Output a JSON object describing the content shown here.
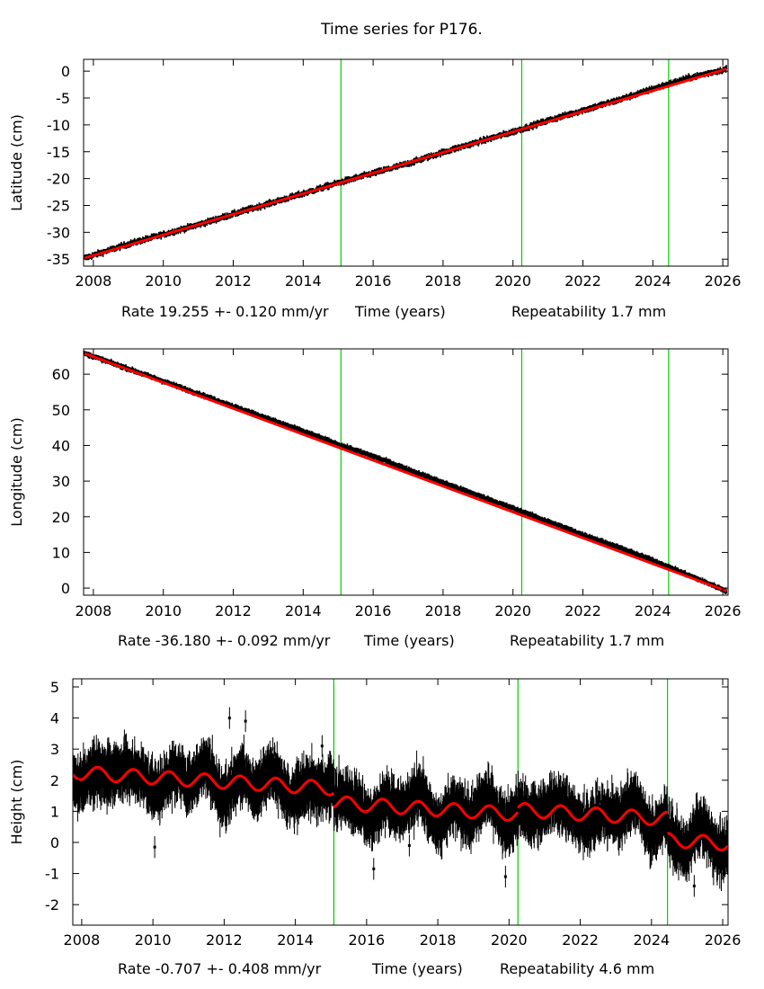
{
  "title": "Time series for P176.",
  "colors": {
    "data": "#000000",
    "model": "#ff0000",
    "event_line": "#00cc00",
    "axis": "#000000"
  },
  "chart_data": [
    {
      "type": "scatter",
      "panel": "latitude",
      "ylabel": "Latitude (cm)",
      "xlabel_parts": [
        "Rate 19.255 +- 0.120 mm/yr",
        "Time (years)",
        "Repeatability 1.7 mm"
      ],
      "xlim": [
        2007.72,
        2026.15
      ],
      "ylim": [
        -36.3,
        2.2
      ],
      "xticks": [
        2008,
        2010,
        2012,
        2014,
        2016,
        2018,
        2020,
        2022,
        2024,
        2026
      ],
      "yticks": [
        0,
        -5,
        -10,
        -15,
        -20,
        -25,
        -30,
        -35
      ],
      "event_lines": [
        2015.08,
        2020.25,
        2024.45
      ],
      "series": [
        {
          "name": "observations",
          "x": [
            2007.75,
            2009,
            2010,
            2011,
            2012,
            2013,
            2014,
            2015,
            2016,
            2017,
            2018,
            2019,
            2020,
            2021,
            2022,
            2023,
            2024,
            2025,
            2026.1
          ],
          "y": [
            -34.8,
            -32.2,
            -30.4,
            -28.6,
            -26.6,
            -24.7,
            -22.8,
            -20.8,
            -19.0,
            -17.2,
            -15.1,
            -13.2,
            -11.3,
            -9.2,
            -7.3,
            -5.4,
            -3.3,
            -1.3,
            0.4
          ]
        },
        {
          "name": "model",
          "x": [
            2007.75,
            2026.1
          ],
          "y": [
            -34.8,
            0.4
          ]
        }
      ]
    },
    {
      "type": "scatter",
      "panel": "longitude",
      "ylabel": "Longitude (cm)",
      "xlabel_parts": [
        "Rate -36.180 +- 0.092 mm/yr",
        "Time (years)",
        "Repeatability 1.7 mm"
      ],
      "xlim": [
        2007.72,
        2026.15
      ],
      "ylim": [
        -2.0,
        67.1
      ],
      "xticks": [
        2008,
        2010,
        2012,
        2014,
        2016,
        2018,
        2020,
        2022,
        2024,
        2026
      ],
      "yticks": [
        60,
        50,
        40,
        30,
        20,
        10,
        0
      ],
      "event_lines": [
        2015.08,
        2020.25,
        2024.45
      ],
      "series": [
        {
          "name": "observations",
          "x": [
            2007.75,
            2009,
            2010,
            2011,
            2012,
            2013,
            2014,
            2015,
            2016,
            2017,
            2018,
            2019,
            2020,
            2021,
            2022,
            2023,
            2024,
            2025,
            2026.1
          ],
          "y": [
            65.8,
            61.5,
            58.0,
            54.5,
            51.0,
            47.5,
            44.0,
            40.3,
            37.0,
            33.3,
            29.6,
            26.0,
            22.4,
            18.7,
            15.0,
            11.5,
            7.8,
            3.7,
            -0.8
          ]
        },
        {
          "name": "model",
          "x": [
            2007.75,
            2026.1
          ],
          "y": [
            65.8,
            -0.8
          ]
        }
      ]
    },
    {
      "type": "scatter",
      "panel": "height",
      "ylabel": "Height (cm)",
      "xlabel_parts": [
        "Rate -0.707 +- 0.408 mm/yr",
        "Time (years)",
        "Repeatability 4.6 mm"
      ],
      "xlim": [
        2007.75,
        2026.15
      ],
      "ylim": [
        -2.66,
        5.26
      ],
      "xticks": [
        2008,
        2010,
        2012,
        2014,
        2016,
        2018,
        2020,
        2022,
        2024,
        2026
      ],
      "yticks": [
        5,
        4,
        3,
        2,
        1,
        0,
        -1,
        -2
      ],
      "event_lines": [
        2015.08,
        2020.25,
        2024.45
      ],
      "model_segments": [
        {
          "start": 2007.75,
          "end": 2015.08,
          "offset": 2.25,
          "trend": -0.07,
          "amplitude": 0.22
        },
        {
          "start": 2015.08,
          "end": 2020.25,
          "offset": 1.27,
          "trend": -0.07,
          "amplitude": 0.22
        },
        {
          "start": 2020.25,
          "end": 2024.45,
          "offset": 1.05,
          "trend": -0.07,
          "amplitude": 0.22
        },
        {
          "start": 2024.45,
          "end": 2026.15,
          "offset": 0.08,
          "trend": -0.07,
          "amplitude": 0.22
        }
      ],
      "observation_envelope": {
        "scatter_cm": 0.6,
        "error_bar_cm": 0.35
      },
      "outliers": [
        {
          "x": 2010.05,
          "y": -0.15
        },
        {
          "x": 2012.15,
          "y": 4.0
        },
        {
          "x": 2012.6,
          "y": 3.9
        },
        {
          "x": 2014.75,
          "y": 3.1
        },
        {
          "x": 2016.2,
          "y": -0.85
        },
        {
          "x": 2017.2,
          "y": -0.1
        },
        {
          "x": 2019.9,
          "y": -1.1
        },
        {
          "x": 2025.2,
          "y": -1.4
        }
      ]
    }
  ]
}
